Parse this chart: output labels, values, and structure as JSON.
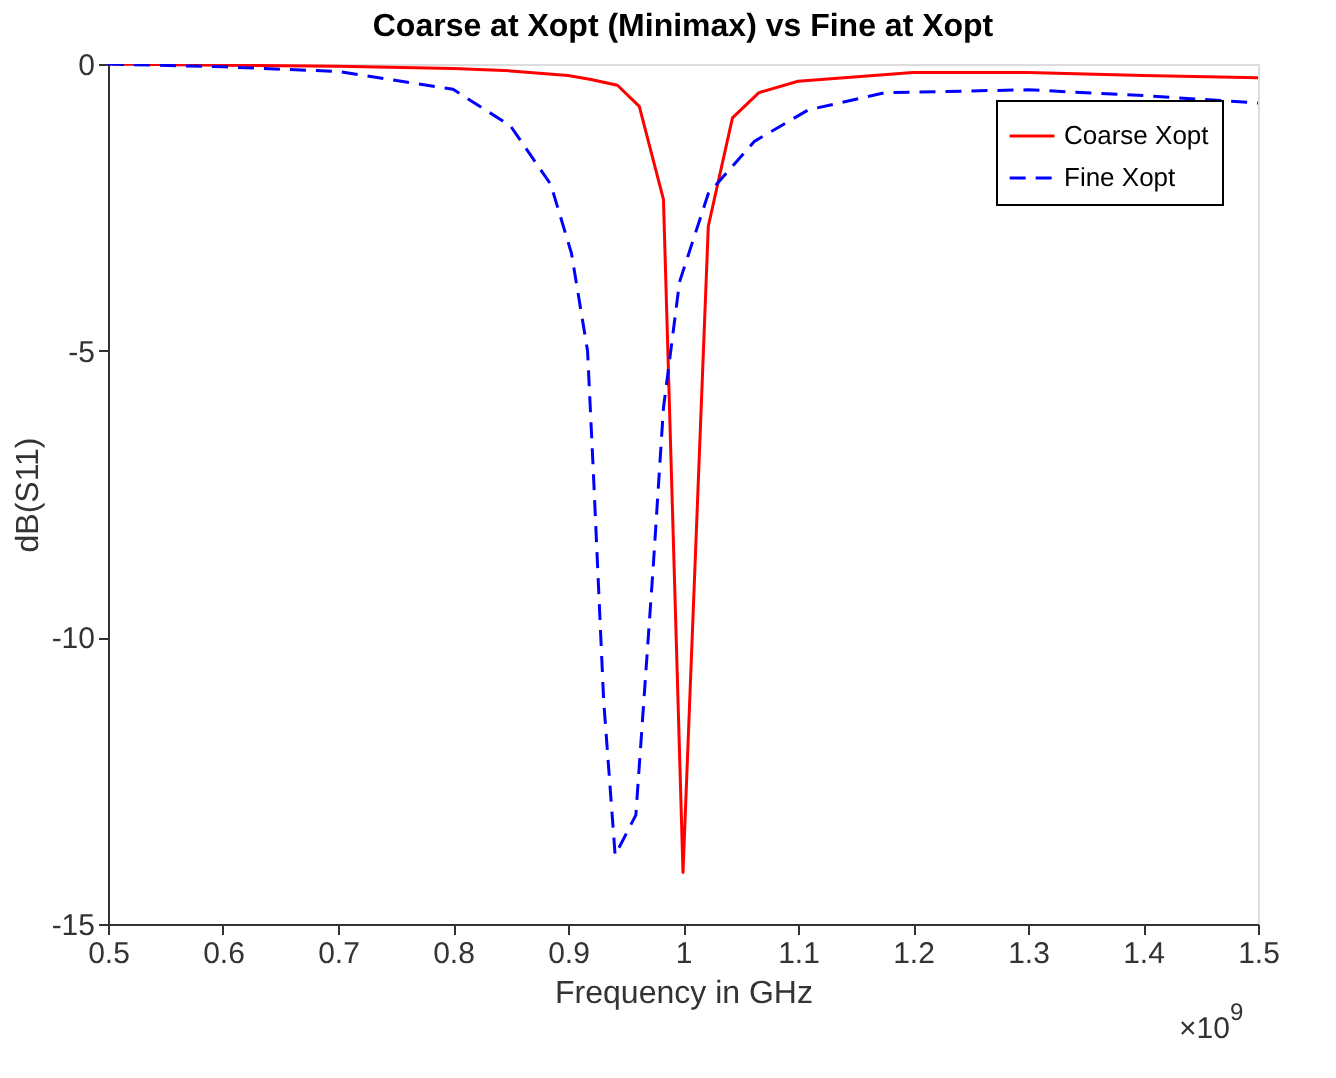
{
  "chart_data": {
    "type": "line",
    "title": "Coarse at Xopt (Minimax) vs Fine at Xopt",
    "xlabel": "Frequency in GHz",
    "ylabel": "dB(S11)",
    "annotations": [
      "×10$^{9}$"
    ],
    "xlim": [
      0.5,
      1.5
    ],
    "xticks": [
      0.5,
      0.6,
      0.7,
      0.8,
      0.9,
      1,
      1.1,
      1.2,
      1.3,
      1.4,
      1.5
    ],
    "ylim": [
      -15,
      0
    ],
    "yticks": [
      -15,
      -10,
      -5,
      0
    ],
    "grid": false,
    "legend": "top right",
    "marker": "none",
    "series": [
      {
        "name": "Coarse Xopt",
        "color": "#ff0000",
        "line_style": "solid",
        "x": [
          0.5,
          0.6,
          0.7,
          0.8,
          0.85,
          0.9,
          0.92,
          0.943,
          0.962,
          0.983,
          1.0,
          1.022,
          1.043,
          1.066,
          1.1,
          1.2,
          1.3,
          1.4,
          1.5
        ],
        "values": [
          0,
          -0.02,
          -0.04,
          -0.08,
          -0.12,
          -0.2,
          -0.27,
          -0.37,
          -0.74,
          -2.36,
          -14.1,
          -2.83,
          -0.94,
          -0.5,
          -0.3,
          -0.15,
          -0.15,
          -0.2,
          -0.24
        ]
      },
      {
        "name": "Fine Xopt",
        "color": "#0000ff",
        "line_style": "dashed",
        "x": [
          0.5,
          0.6,
          0.7,
          0.8,
          0.85,
          0.885,
          0.903,
          0.917,
          0.922,
          0.931,
          0.941,
          0.959,
          0.974,
          0.983,
          0.997,
          1.022,
          1.062,
          1.109,
          1.176,
          1.3,
          1.4,
          1.5
        ],
        "values": [
          0,
          -0.05,
          -0.13,
          -0.44,
          -1.08,
          -2.1,
          -3.3,
          -5.0,
          -7.1,
          -11.1,
          -13.8,
          -13.1,
          -8.8,
          -6.0,
          -3.8,
          -2.26,
          -1.35,
          -0.8,
          -0.5,
          -0.45,
          -0.55,
          -0.68
        ]
      }
    ]
  }
}
